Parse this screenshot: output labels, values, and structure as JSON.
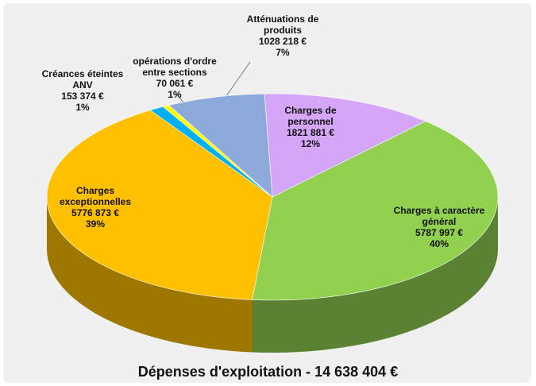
{
  "chart_data": {
    "type": "pie3d",
    "title": "Dépenses d'exploitation - 14 638 404 €",
    "categories": [
      "Charges de personnel",
      "Charges à caractère général",
      "Charges exceptionnelles",
      "Créances éteintes ANV",
      "opérations d'ordre entre sections",
      "Atténuations de produits"
    ],
    "values": [
      1821881,
      5787997,
      5776873,
      153374,
      70061,
      1028218
    ],
    "value_labels": [
      "1821 881 €",
      "5787 997 €",
      "5776 873 €",
      "153 374 €",
      "70 061 €",
      "1028 218 €"
    ],
    "percent_labels": [
      "12%",
      "40%",
      "39%",
      "1%",
      "1%",
      "7%"
    ],
    "colors": [
      "#d5a6f7",
      "#92d050",
      "#ffc000",
      "#00b0f0",
      "#ffff00",
      "#8eaadb"
    ]
  }
}
